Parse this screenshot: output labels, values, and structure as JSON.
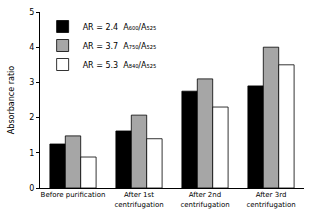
{
  "chart_data": {
    "type": "bar",
    "y_label": "Absorbance ratio",
    "categories": [
      "Before purification",
      "After 1st centrifugation",
      "After 2nd centrifugation",
      "After 3rd centrifugation"
    ],
    "series": [
      {
        "name": "AR = 2.4  A₆₀₀/A₅₂₅",
        "color": "#000000",
        "values": [
          1.25,
          1.62,
          2.75,
          2.9
        ]
      },
      {
        "name": "AR = 3.7  A₇₅₀/A₅₂₅",
        "color": "#a6a6a6",
        "values": [
          1.48,
          2.07,
          3.1,
          4.0
        ]
      },
      {
        "name": "AR = 5.3  A₈₄₀/A₅₂₅",
        "color": "#ffffff",
        "values": [
          0.88,
          1.4,
          2.3,
          3.5
        ]
      }
    ],
    "ylim": [
      0,
      5
    ],
    "yticks": [
      0,
      1,
      2,
      3,
      4,
      5
    ],
    "grid": false,
    "legend": "upper left"
  }
}
